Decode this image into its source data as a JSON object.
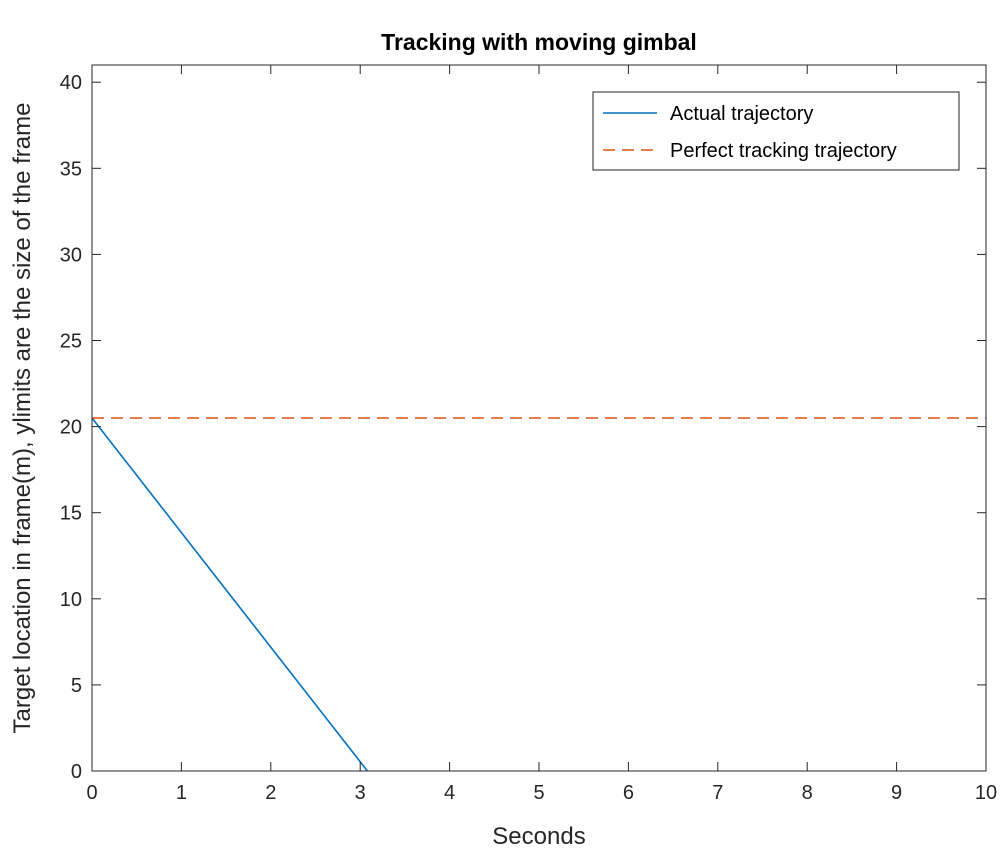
{
  "chart_data": {
    "type": "line",
    "title": "Tracking with moving gimbal",
    "xlabel": "Seconds",
    "ylabel": "Target location in frame(m), ylimits are the size of the frame",
    "xlim": [
      0,
      10
    ],
    "ylim": [
      0,
      41
    ],
    "xticks": [
      0,
      1,
      2,
      3,
      4,
      5,
      6,
      7,
      8,
      9,
      10
    ],
    "yticks": [
      0,
      5,
      10,
      15,
      20,
      25,
      30,
      35,
      40
    ],
    "grid": false,
    "legend_position": "top-right",
    "series": [
      {
        "name": "Actual trajectory",
        "style": "solid",
        "color": "#0072BD",
        "x": [
          0,
          3.08
        ],
        "y": [
          20.5,
          0
        ]
      },
      {
        "name": "Perfect tracking trajectory",
        "style": "dashed",
        "color": "#D95319",
        "x": [
          0,
          10
        ],
        "y": [
          20.5,
          20.5
        ]
      }
    ]
  }
}
